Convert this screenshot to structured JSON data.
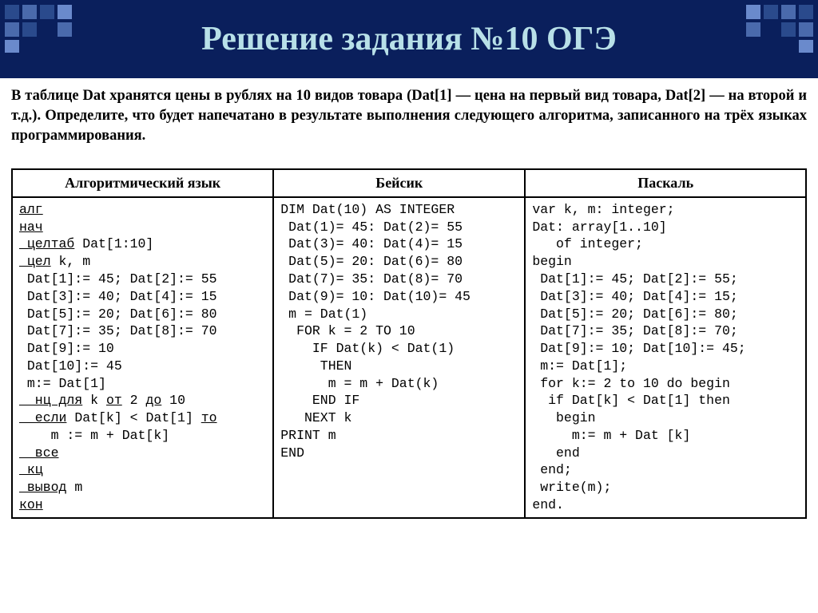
{
  "header": {
    "title": "Решение задания №10 ОГЭ",
    "bg_color": "#0a1f5c",
    "title_color": "#b8e0e8",
    "square_colors": [
      "#2a4a8c",
      "#4a6aac",
      "#6a8acc"
    ]
  },
  "problem": {
    "text": "В таблице Dat хранятся цены в рублях на 10 видов товара (Dat[1] — цена на первый вид товара, Dat[2] — на второй и т.д.). Определите, что будет напечатано в результате выполнения следующего алгоритма, записанного на трёх языках программирования."
  },
  "table": {
    "headers": [
      "Алгоритмический язык",
      "Бейсик",
      "Паскаль"
    ],
    "columns": {
      "alg": {
        "lines": [
          {
            "t": "алг",
            "u": true
          },
          {
            "t": "нач",
            "u": true
          },
          {
            "t": " целтаб",
            "u": true,
            "tail": " Dat[1:10]"
          },
          {
            "t": " цел",
            "u": true,
            "tail": " k, m"
          },
          {
            "t": " Dat[1]:= 45; Dat[2]:= 55"
          },
          {
            "t": " Dat[3]:= 40; Dat[4]:= 15"
          },
          {
            "t": " Dat[5]:= 20; Dat[6]:= 80"
          },
          {
            "t": " Dat[7]:= 35; Dat[8]:= 70"
          },
          {
            "t": " Dat[9]:= 10"
          },
          {
            "t": " Dat[10]:= 45"
          },
          {
            "t": " m:= Dat[1]"
          },
          {
            "t": "  нц для",
            "u": true,
            "tail": " k ",
            "mid": "от",
            "midU": true,
            "tail2": " 2 ",
            "end": "до",
            "endU": true,
            "tail3": " 10"
          },
          {
            "t": "  если",
            "u": true,
            "tail": " Dat[k] < Dat[1] ",
            "end": "то",
            "endU": true
          },
          {
            "t": "    m := m + Dat[k]"
          },
          {
            "t": "  все",
            "u": true
          },
          {
            "t": " кц",
            "u": true
          },
          {
            "t": " вывод",
            "u": true,
            "tail": " m"
          },
          {
            "t": "кон",
            "u": true
          }
        ]
      },
      "basic": {
        "text": "DIM Dat(10) AS INTEGER\n Dat(1)= 45: Dat(2)= 55\n Dat(3)= 40: Dat(4)= 15\n Dat(5)= 20: Dat(6)= 80\n Dat(7)= 35: Dat(8)= 70\n Dat(9)= 10: Dat(10)= 45\n m = Dat(1)\n  FOR k = 2 TO 10\n    IF Dat(k) < Dat(1)\n     THEN\n      m = m + Dat(k)\n    END IF\n   NEXT k\nPRINT m\nEND"
      },
      "pascal": {
        "text": "var k, m: integer;\nDat: array[1..10]\n   of integer;\nbegin\n Dat[1]:= 45; Dat[2]:= 55;\n Dat[3]:= 40; Dat[4]:= 15;\n Dat[5]:= 20; Dat[6]:= 80;\n Dat[7]:= 35; Dat[8]:= 70;\n Dat[9]:= 10; Dat[10]:= 45;\n m:= Dat[1];\n for k:= 2 to 10 do begin\n  if Dat[k] < Dat[1] then\n   begin\n     m:= m + Dat [k]\n   end\n end;\n write(m);\nend."
      }
    }
  }
}
